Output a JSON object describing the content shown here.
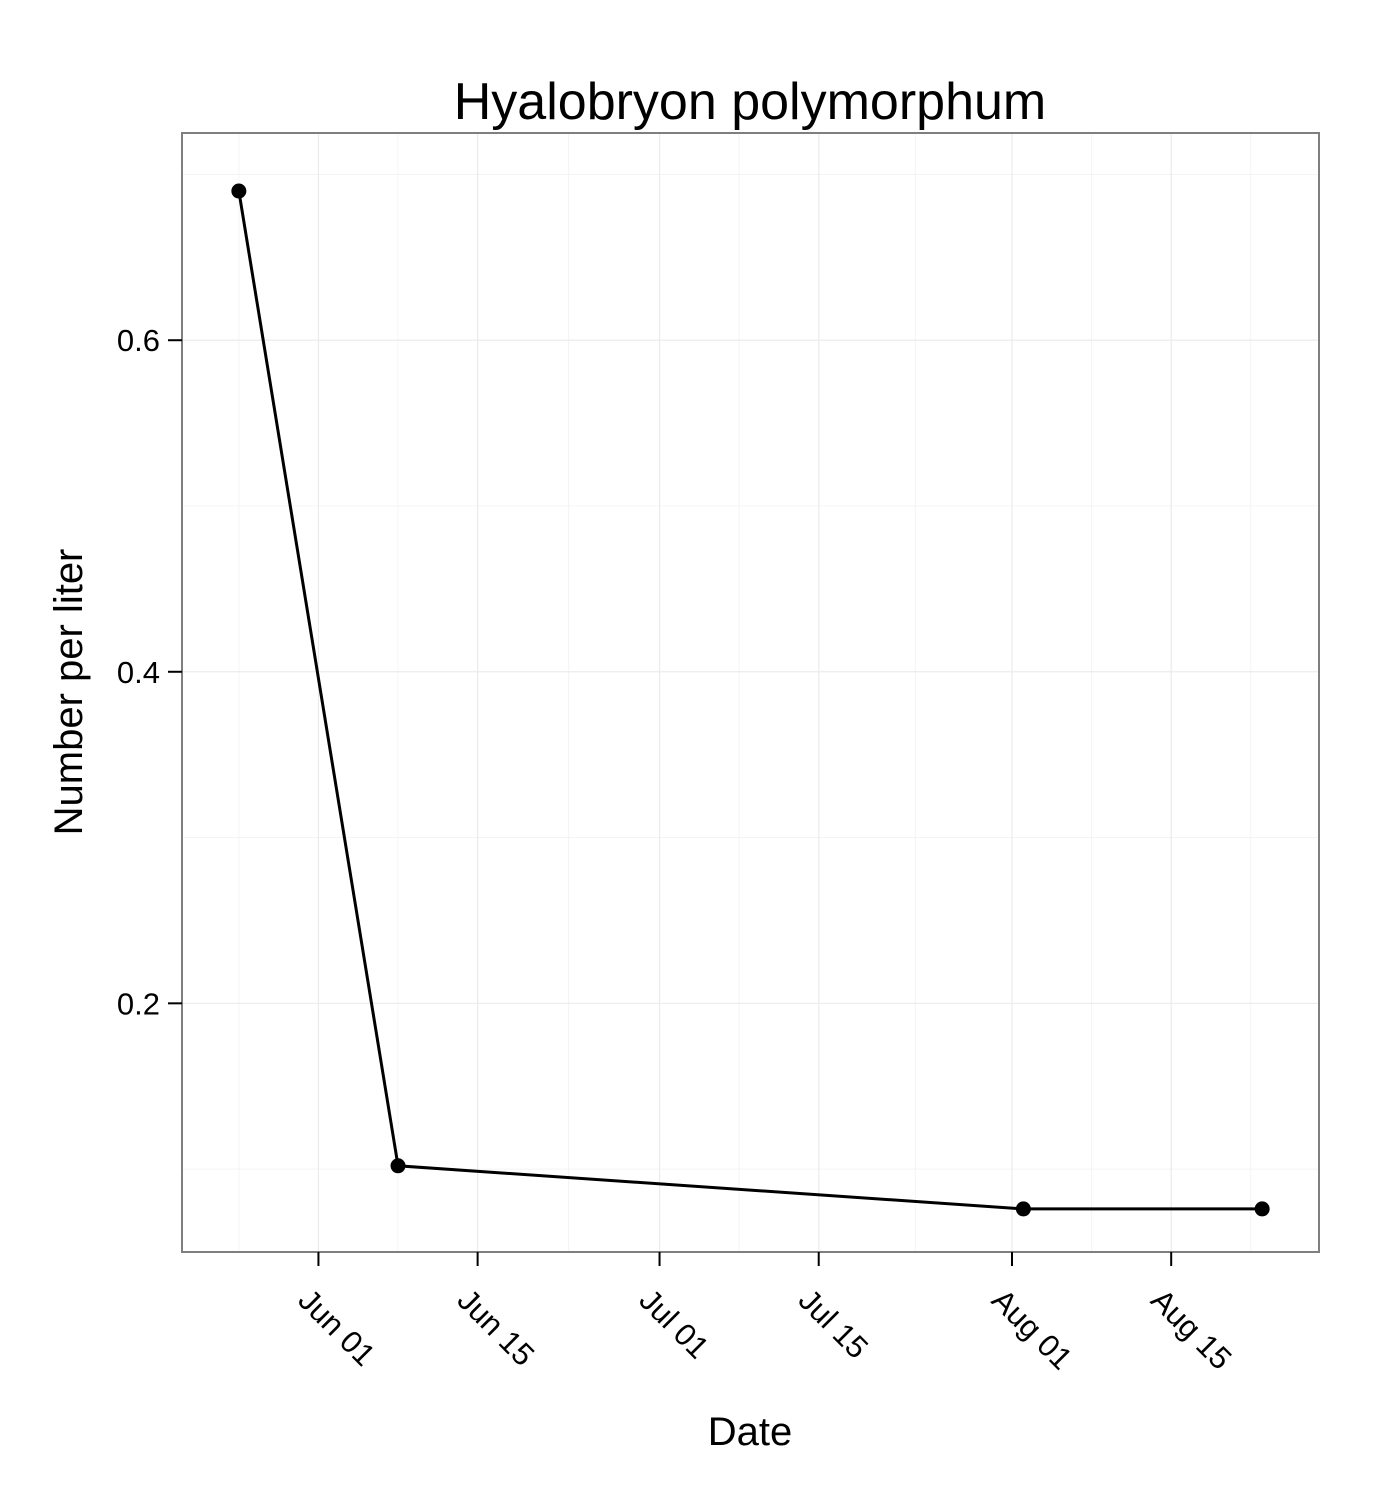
{
  "chart_data": {
    "type": "line",
    "title": "Hyalobryon polymorphum",
    "xlabel": "Date",
    "ylabel": "Number per liter",
    "x_axis_type": "date",
    "xlim": [
      "2013-05-20",
      "2013-08-28"
    ],
    "ylim": [
      0.05,
      0.725
    ],
    "x_ticks": [
      {
        "date": "2013-06-01",
        "label": "Jun 01"
      },
      {
        "date": "2013-06-15",
        "label": "Jun 15"
      },
      {
        "date": "2013-07-01",
        "label": "Jul 01"
      },
      {
        "date": "2013-07-15",
        "label": "Jul 15"
      },
      {
        "date": "2013-08-01",
        "label": "Aug 01"
      },
      {
        "date": "2013-08-15",
        "label": "Aug 15"
      }
    ],
    "x_tick_label_rotation": 45,
    "y_ticks": [
      {
        "value": 0.2,
        "label": "0.2"
      },
      {
        "value": 0.4,
        "label": "0.4"
      },
      {
        "value": 0.6,
        "label": "0.6"
      }
    ],
    "grid": true,
    "series": [
      {
        "x": [
          "2013-05-25",
          "2013-06-08",
          "2013-08-02",
          "2013-08-23"
        ],
        "y": [
          0.69,
          0.102,
          0.076,
          0.076
        ],
        "color": "#000000",
        "marker": "circle"
      }
    ]
  },
  "colors": {
    "background": "#ffffff",
    "panel_border": "#7f7f7f",
    "grid": "#ebebeb",
    "series": "#000000"
  }
}
